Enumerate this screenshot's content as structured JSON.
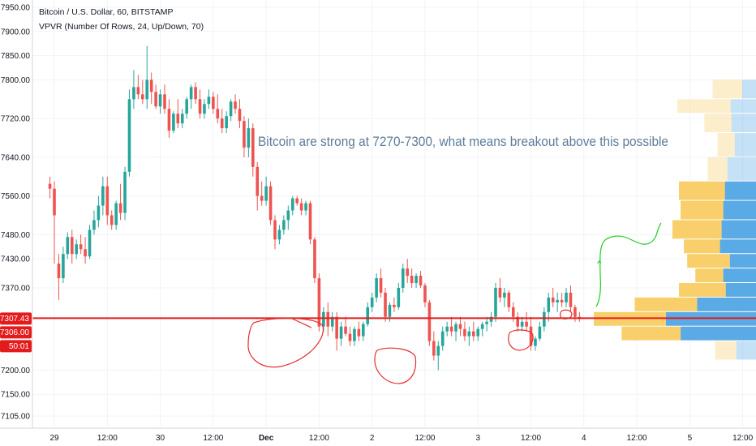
{
  "header": {
    "symbol_line": "Bitcoin / U.S. Dollar, 60, BITSTAMP",
    "indicator_line": "VPVR (Number Of Rows, 24, Up/Down, 70)"
  },
  "annotation": {
    "text": "Bitcoin are strong at 7270-7300, what means breakout above this possible",
    "color": "#5d7c99"
  },
  "colors": {
    "up": "#26a69a",
    "down": "#ef5350",
    "vp_up": "#5aaae6",
    "vp_down": "#f8cf6a",
    "horizontal_line": "#e31b1b",
    "drawing_red": "#e52b2b",
    "drawing_green": "#1fcc1f"
  },
  "price_axis": {
    "ticks": [
      "7950.00",
      "7900.00",
      "7850.00",
      "7800.00",
      "7720.00",
      "7640.00",
      "7560.00",
      "7480.00",
      "7430.00",
      "7370.00",
      "7200.00",
      "7150.00",
      "7105.00"
    ],
    "badges": [
      "7307.43",
      "7306.00",
      "50:01"
    ]
  },
  "time_axis": {
    "labels": [
      "29",
      "12:00",
      "30",
      "12:00",
      "Dec",
      "12:00",
      "2",
      "12:00",
      "3",
      "12:00",
      "4",
      "12:00",
      "5",
      "12:00"
    ]
  },
  "chart_data": {
    "type": "candlestick",
    "title": "Bitcoin / U.S. Dollar, 60, BITSTAMP",
    "ylim": [
      7080,
      7965
    ],
    "horizontal_line": 7307.43,
    "x_range_hours": [
      -4,
      130
    ],
    "x_unit": "hours since 29 Nov 00:00",
    "candle_hours": [
      -1,
      0,
      1,
      2,
      3,
      4,
      5,
      6,
      7,
      8,
      9,
      10,
      11,
      12,
      13,
      14,
      15,
      16,
      17,
      18,
      19,
      20,
      21,
      22,
      23,
      24,
      25,
      26,
      27,
      28,
      29,
      30,
      31,
      32,
      33,
      34,
      35,
      36,
      37,
      38,
      39,
      40,
      41,
      42,
      43,
      44,
      45,
      46,
      47,
      48,
      49,
      50,
      51,
      52,
      53,
      54,
      55,
      56,
      57,
      58,
      59,
      60,
      61,
      62,
      63,
      64,
      65,
      66,
      67,
      68,
      69,
      70,
      71,
      72,
      73,
      74,
      75,
      76,
      77,
      78,
      79,
      80,
      81,
      82,
      83,
      84,
      85,
      86,
      87,
      88,
      89,
      90,
      91,
      92,
      93,
      94,
      95,
      96,
      97,
      98,
      99,
      100,
      101,
      102,
      103,
      104,
      105,
      106,
      107,
      108,
      109,
      110,
      111,
      112,
      113,
      114,
      115,
      116,
      117,
      118,
      119
    ],
    "ohlc": [
      [
        7585,
        7600,
        7555,
        7575
      ],
      [
        7575,
        7590,
        7420,
        7520
      ],
      [
        7420,
        7440,
        7345,
        7390
      ],
      [
        7390,
        7455,
        7380,
        7440
      ],
      [
        7440,
        7485,
        7430,
        7475
      ],
      [
        7475,
        7490,
        7420,
        7440
      ],
      [
        7440,
        7470,
        7430,
        7460
      ],
      [
        7460,
        7480,
        7440,
        7450
      ],
      [
        7450,
        7475,
        7420,
        7435
      ],
      [
        7435,
        7500,
        7430,
        7490
      ],
      [
        7490,
        7530,
        7480,
        7510
      ],
      [
        7510,
        7560,
        7495,
        7540
      ],
      [
        7540,
        7600,
        7520,
        7580
      ],
      [
        7580,
        7600,
        7500,
        7520
      ],
      [
        7520,
        7530,
        7490,
        7500
      ],
      [
        7500,
        7550,
        7490,
        7545
      ],
      [
        7545,
        7585,
        7510,
        7525
      ],
      [
        7525,
        7620,
        7510,
        7610
      ],
      [
        7610,
        7780,
        7600,
        7760
      ],
      [
        7760,
        7820,
        7740,
        7785
      ],
      [
        7785,
        7810,
        7760,
        7770
      ],
      [
        7770,
        7800,
        7750,
        7760
      ],
      [
        7760,
        7870,
        7740,
        7800
      ],
      [
        7800,
        7815,
        7750,
        7775
      ],
      [
        7775,
        7790,
        7740,
        7745
      ],
      [
        7745,
        7780,
        7730,
        7770
      ],
      [
        7770,
        7790,
        7730,
        7740
      ],
      [
        7740,
        7760,
        7680,
        7695
      ],
      [
        7695,
        7735,
        7690,
        7730
      ],
      [
        7730,
        7760,
        7700,
        7710
      ],
      [
        7710,
        7740,
        7700,
        7730
      ],
      [
        7730,
        7765,
        7720,
        7760
      ],
      [
        7760,
        7790,
        7740,
        7785
      ],
      [
        7785,
        7795,
        7750,
        7760
      ],
      [
        7760,
        7780,
        7720,
        7730
      ],
      [
        7730,
        7760,
        7720,
        7750
      ],
      [
        7750,
        7780,
        7740,
        7765
      ],
      [
        7765,
        7775,
        7730,
        7740
      ],
      [
        7740,
        7770,
        7710,
        7720
      ],
      [
        7720,
        7740,
        7690,
        7700
      ],
      [
        7700,
        7735,
        7690,
        7725
      ],
      [
        7725,
        7760,
        7715,
        7755
      ],
      [
        7755,
        7770,
        7730,
        7740
      ],
      [
        7740,
        7760,
        7700,
        7715
      ],
      [
        7715,
        7725,
        7640,
        7660
      ],
      [
        7660,
        7720,
        7640,
        7700
      ],
      [
        7700,
        7710,
        7600,
        7620
      ],
      [
        7620,
        7630,
        7530,
        7560
      ],
      [
        7560,
        7590,
        7540,
        7550
      ],
      [
        7550,
        7600,
        7540,
        7580
      ],
      [
        7580,
        7590,
        7500,
        7510
      ],
      [
        7510,
        7520,
        7450,
        7470
      ],
      [
        7470,
        7500,
        7460,
        7490
      ],
      [
        7490,
        7520,
        7480,
        7510
      ],
      [
        7510,
        7540,
        7490,
        7530
      ],
      [
        7530,
        7560,
        7520,
        7555
      ],
      [
        7555,
        7560,
        7540,
        7545
      ],
      [
        7545,
        7555,
        7520,
        7530
      ],
      [
        7530,
        7550,
        7520,
        7545
      ],
      [
        7545,
        7550,
        7460,
        7470
      ],
      [
        7470,
        7475,
        7380,
        7390
      ],
      [
        7390,
        7400,
        7280,
        7290
      ],
      [
        7290,
        7330,
        7280,
        7320
      ],
      [
        7320,
        7340,
        7270,
        7290
      ],
      [
        7290,
        7320,
        7280,
        7310
      ],
      [
        7310,
        7320,
        7240,
        7265
      ],
      [
        7265,
        7300,
        7250,
        7290
      ],
      [
        7290,
        7310,
        7270,
        7275
      ],
      [
        7275,
        7290,
        7250,
        7260
      ],
      [
        7260,
        7290,
        7250,
        7285
      ],
      [
        7285,
        7300,
        7260,
        7270
      ],
      [
        7270,
        7300,
        7260,
        7295
      ],
      [
        7295,
        7340,
        7290,
        7330
      ],
      [
        7330,
        7360,
        7320,
        7350
      ],
      [
        7350,
        7400,
        7340,
        7390
      ],
      [
        7390,
        7410,
        7350,
        7360
      ],
      [
        7360,
        7370,
        7300,
        7310
      ],
      [
        7310,
        7340,
        7300,
        7335
      ],
      [
        7335,
        7350,
        7320,
        7330
      ],
      [
        7330,
        7380,
        7325,
        7370
      ],
      [
        7370,
        7420,
        7360,
        7410
      ],
      [
        7410,
        7430,
        7380,
        7395
      ],
      [
        7395,
        7410,
        7370,
        7380
      ],
      [
        7380,
        7400,
        7370,
        7395
      ],
      [
        7395,
        7405,
        7370,
        7375
      ],
      [
        7375,
        7380,
        7330,
        7340
      ],
      [
        7340,
        7345,
        7250,
        7260
      ],
      [
        7260,
        7280,
        7220,
        7230
      ],
      [
        7230,
        7260,
        7200,
        7250
      ],
      [
        7250,
        7290,
        7240,
        7280
      ],
      [
        7280,
        7300,
        7270,
        7290
      ],
      [
        7290,
        7310,
        7270,
        7280
      ],
      [
        7280,
        7300,
        7260,
        7295
      ],
      [
        7295,
        7310,
        7270,
        7285
      ],
      [
        7285,
        7300,
        7260,
        7270
      ],
      [
        7270,
        7290,
        7250,
        7280
      ],
      [
        7280,
        7300,
        7260,
        7270
      ],
      [
        7270,
        7290,
        7260,
        7285
      ],
      [
        7285,
        7300,
        7270,
        7295
      ],
      [
        7295,
        7310,
        7280,
        7300
      ],
      [
        7300,
        7320,
        7290,
        7310
      ],
      [
        7310,
        7380,
        7300,
        7370
      ],
      [
        7370,
        7390,
        7340,
        7350
      ],
      [
        7350,
        7370,
        7330,
        7360
      ],
      [
        7360,
        7365,
        7320,
        7330
      ],
      [
        7330,
        7340,
        7300,
        7310
      ],
      [
        7310,
        7320,
        7280,
        7290
      ],
      [
        7290,
        7310,
        7280,
        7300
      ],
      [
        7300,
        7320,
        7280,
        7290
      ],
      [
        7290,
        7310,
        7240,
        7250
      ],
      [
        7250,
        7270,
        7240,
        7265
      ],
      [
        7265,
        7300,
        7260,
        7290
      ],
      [
        7290,
        7330,
        7280,
        7320
      ],
      [
        7320,
        7360,
        7300,
        7350
      ],
      [
        7350,
        7370,
        7330,
        7340
      ],
      [
        7340,
        7360,
        7320,
        7345
      ],
      [
        7345,
        7360,
        7330,
        7340
      ],
      [
        7340,
        7370,
        7330,
        7360
      ],
      [
        7360,
        7375,
        7320,
        7330
      ],
      [
        7330,
        7335,
        7300,
        7310
      ],
      [
        7310,
        7320,
        7300,
        7307
      ]
    ],
    "volume_profile": {
      "rows": [
        {
          "low": 7760,
          "high": 7800,
          "up": 17,
          "down": 36
        },
        {
          "low": 7730,
          "high": 7760,
          "up": 31,
          "down": 65
        },
        {
          "low": 7690,
          "high": 7730,
          "up": 30,
          "down": 33
        },
        {
          "low": 7640,
          "high": 7690,
          "up": 26,
          "down": 21
        },
        {
          "low": 7590,
          "high": 7640,
          "up": 35,
          "down": 24
        },
        {
          "low": 7550,
          "high": 7590,
          "up": 38,
          "down": 56
        },
        {
          "low": 7510,
          "high": 7550,
          "up": 40,
          "down": 52
        },
        {
          "low": 7470,
          "high": 7510,
          "up": 42,
          "down": 60
        },
        {
          "low": 7440,
          "high": 7470,
          "up": 44,
          "down": 44
        },
        {
          "low": 7410,
          "high": 7440,
          "up": 32,
          "down": 52
        },
        {
          "low": 7380,
          "high": 7410,
          "up": 40,
          "down": 34
        },
        {
          "low": 7350,
          "high": 7380,
          "up": 37,
          "down": 57
        },
        {
          "low": 7320,
          "high": 7350,
          "up": 72,
          "down": 76
        },
        {
          "low": 7290,
          "high": 7320,
          "up": 110,
          "down": 88
        },
        {
          "low": 7260,
          "high": 7290,
          "up": 92,
          "down": 72
        },
        {
          "low": 7220,
          "high": 7260,
          "up": 24,
          "down": 26
        }
      ]
    }
  }
}
